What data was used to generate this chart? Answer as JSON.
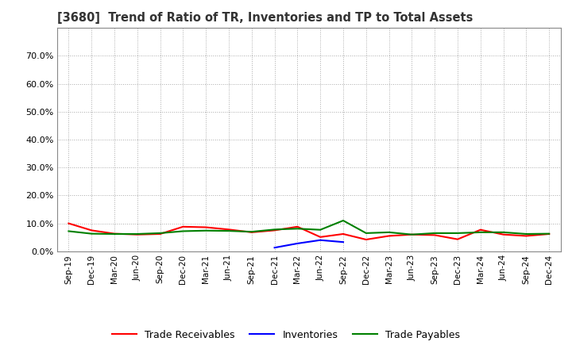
{
  "title": "[3680]  Trend of Ratio of TR, Inventories and TP to Total Assets",
  "x_labels": [
    "Sep-19",
    "Dec-19",
    "Mar-20",
    "Jun-20",
    "Sep-20",
    "Dec-20",
    "Mar-21",
    "Jun-21",
    "Sep-21",
    "Dec-21",
    "Mar-22",
    "Jun-22",
    "Sep-22",
    "Dec-22",
    "Mar-23",
    "Jun-23",
    "Sep-23",
    "Dec-23",
    "Mar-24",
    "Jun-24",
    "Sep-24",
    "Dec-24"
  ],
  "trade_receivables": [
    0.1,
    0.075,
    0.063,
    0.06,
    0.062,
    0.088,
    0.086,
    0.078,
    0.068,
    0.075,
    0.088,
    0.051,
    0.062,
    0.042,
    0.055,
    0.06,
    0.058,
    0.043,
    0.077,
    0.06,
    0.055,
    0.062
  ],
  "inventories": [
    null,
    null,
    null,
    null,
    null,
    null,
    null,
    null,
    null,
    0.013,
    0.028,
    0.04,
    0.033,
    null,
    null,
    null,
    null,
    null,
    null,
    null,
    null,
    null
  ],
  "trade_payables": [
    0.072,
    0.063,
    0.062,
    0.062,
    0.065,
    0.072,
    0.074,
    0.073,
    0.07,
    0.078,
    0.081,
    0.077,
    0.11,
    0.065,
    0.068,
    0.06,
    0.065,
    0.065,
    0.068,
    0.068,
    0.062,
    0.063
  ],
  "tr_color": "#ff0000",
  "inv_color": "#0000ff",
  "tp_color": "#008000",
  "ylim": [
    0.0,
    0.8
  ],
  "yticks": [
    0.0,
    0.1,
    0.2,
    0.3,
    0.4,
    0.5,
    0.6,
    0.7
  ],
  "ytick_labels": [
    "0.0%",
    "10.0%",
    "20.0%",
    "30.0%",
    "40.0%",
    "50.0%",
    "60.0%",
    "70.0%"
  ],
  "background_color": "#ffffff",
  "grid_color": "#aaaaaa",
  "title_color": "#333333",
  "legend_labels": [
    "Trade Receivables",
    "Inventories",
    "Trade Payables"
  ]
}
